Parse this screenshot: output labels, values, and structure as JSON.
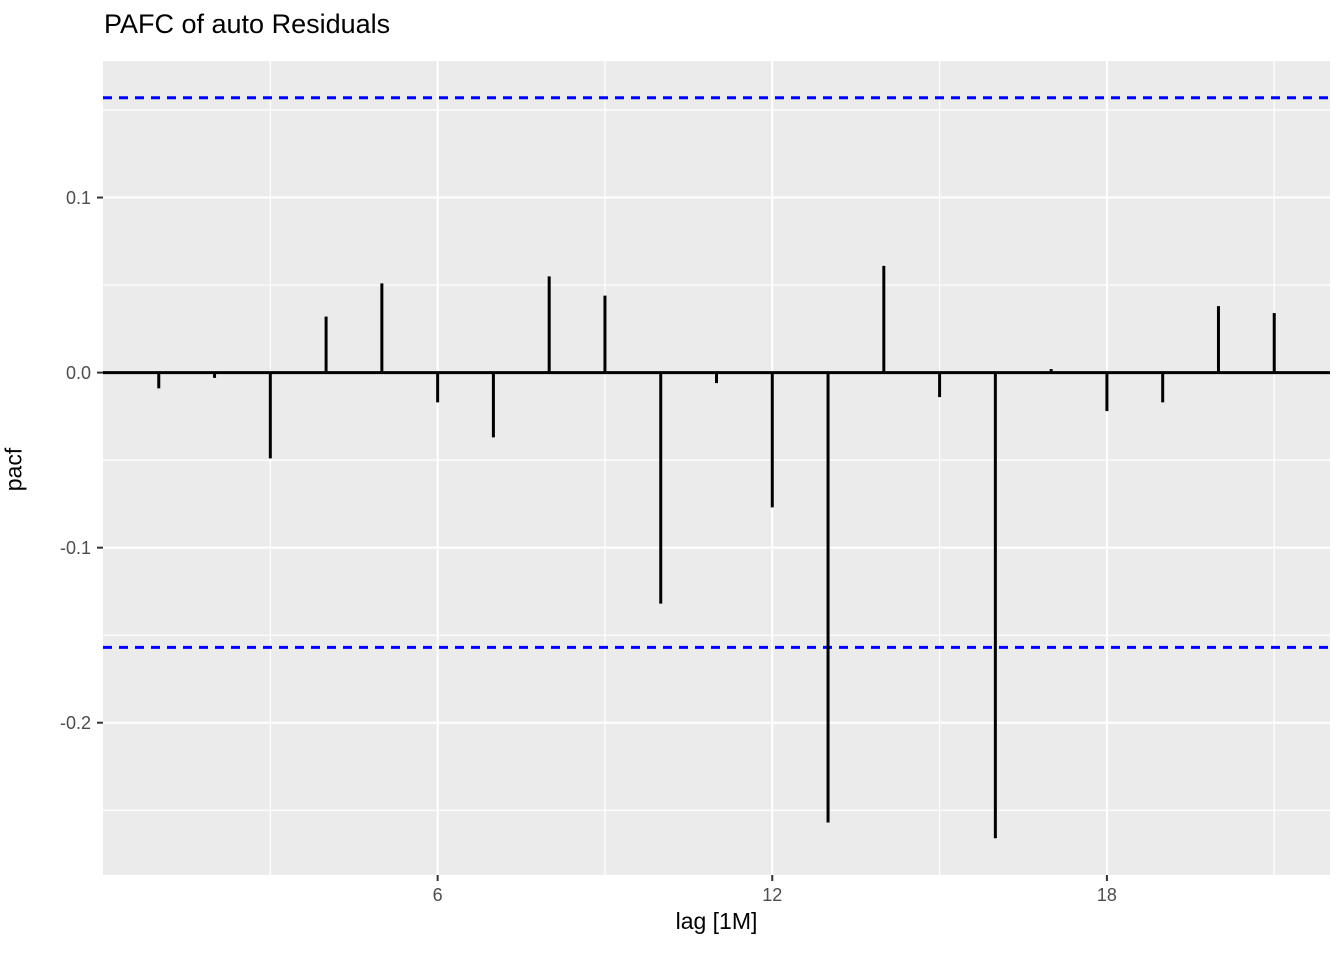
{
  "title": "PAFC of auto Residuals",
  "chart_data": {
    "type": "bar",
    "subtype": "lollipop-segments-pacf",
    "title": "PAFC of auto Residuals",
    "xlabel": "lag [1M]",
    "ylabel": "pacf",
    "x": [
      1,
      2,
      3,
      4,
      5,
      6,
      7,
      8,
      9,
      10,
      11,
      12,
      13,
      14,
      15,
      16,
      17,
      18,
      19,
      20,
      21
    ],
    "values": [
      -0.009,
      -0.003,
      -0.049,
      0.032,
      0.051,
      -0.017,
      -0.037,
      0.055,
      0.044,
      -0.132,
      -0.006,
      -0.077,
      -0.257,
      0.061,
      -0.014,
      -0.266,
      0.002,
      -0.022,
      -0.017,
      0.038,
      0.034
    ],
    "confidence_bounds": {
      "upper": 0.157,
      "lower": -0.157
    },
    "xlim": [
      0,
      22
    ],
    "ylim": [
      -0.287,
      0.178
    ],
    "x_ticks": [
      6,
      12,
      18
    ],
    "x_tick_labels": [
      "6",
      "12",
      "18"
    ],
    "y_ticks": [
      0.1,
      0.0,
      -0.1,
      -0.2
    ],
    "y_tick_labels": [
      "0.1",
      "0.0",
      "-0.1",
      "-0.2"
    ],
    "x_minor_gridlines": [
      3,
      9,
      15,
      21
    ],
    "y_minor_gridlines": [
      0.15,
      0.05,
      -0.05,
      -0.15,
      -0.25
    ],
    "grid": true,
    "legend": "none",
    "colors": {
      "panel_background": "#EBEBEB",
      "gridline": "#FFFFFF",
      "bar": "#000000",
      "zero_line": "#000000",
      "confidence_line": "#0000FF",
      "tick_text": "#4D4D4D",
      "tick_mark": "#333333",
      "title_text": "#000000",
      "axis_title_text": "#000000"
    }
  }
}
